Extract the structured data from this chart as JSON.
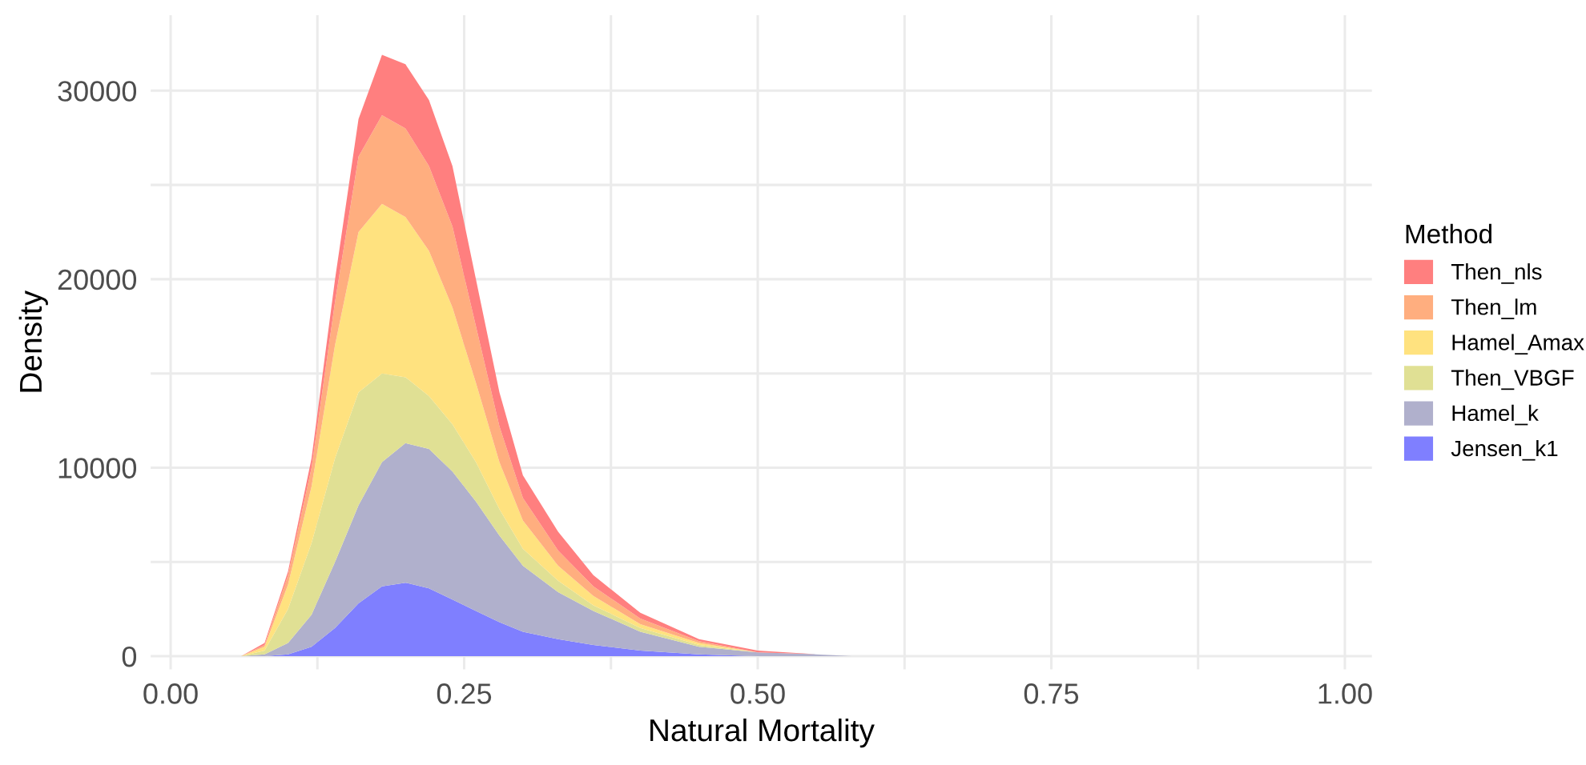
{
  "chart_data": {
    "type": "area",
    "stacked": true,
    "xlabel": "Natural Mortality",
    "ylabel": "Density",
    "legend_title": "Method",
    "legend": "right",
    "grid": true,
    "x": [
      0.06,
      0.08,
      0.1,
      0.12,
      0.14,
      0.16,
      0.18,
      0.2,
      0.22,
      0.24,
      0.26,
      0.28,
      0.3,
      0.33,
      0.36,
      0.4,
      0.45,
      0.5,
      0.55,
      0.58
    ],
    "xlim": [
      -0.017,
      1.023
    ],
    "ylim": [
      -700,
      34000
    ],
    "xticks": [
      {
        "value": 0,
        "label": "0.00"
      },
      {
        "value": 0.125,
        "label": null
      },
      {
        "value": 0.25,
        "label": "0.25"
      },
      {
        "value": 0.375,
        "label": null
      },
      {
        "value": 0.5,
        "label": "0.50"
      },
      {
        "value": 0.625,
        "label": null
      },
      {
        "value": 0.75,
        "label": "0.75"
      },
      {
        "value": 0.875,
        "label": null
      },
      {
        "value": 1,
        "label": "1.00"
      }
    ],
    "yticks": [
      0,
      {
        "value": 5000,
        "label": null
      },
      10000,
      {
        "value": 15000,
        "label": null
      },
      20000,
      {
        "value": 25000,
        "label": null
      },
      30000
    ],
    "series": [
      {
        "name": "Jensen_k1",
        "color": "#7f7fff",
        "values": [
          0,
          0,
          100,
          500,
          1500,
          2800,
          3700,
          3900,
          3600,
          3000,
          2400,
          1800,
          1300,
          900,
          600,
          300,
          100,
          0,
          0,
          0
        ]
      },
      {
        "name": "Hamel_k",
        "color": "#b0b0cc",
        "values": [
          0,
          100,
          600,
          1700,
          3500,
          5200,
          6600,
          7400,
          7400,
          6800,
          5800,
          4600,
          3500,
          2500,
          1800,
          1000,
          400,
          200,
          100,
          0
        ]
      },
      {
        "name": "Then_VBGF",
        "color": "#e0e094",
        "values": [
          0,
          200,
          1800,
          3800,
          5500,
          6000,
          4700,
          3500,
          2800,
          2500,
          2100,
          1400,
          900,
          600,
          300,
          200,
          100,
          0,
          0,
          0
        ]
      },
      {
        "name": "Hamel_Amax",
        "color": "#ffe27f",
        "values": [
          0,
          200,
          1300,
          3000,
          6000,
          8500,
          9000,
          8500,
          7700,
          6200,
          4200,
          2500,
          1500,
          800,
          500,
          200,
          100,
          0,
          0,
          0
        ]
      },
      {
        "name": "Then_lm",
        "color": "#ffae7f",
        "values": [
          0,
          100,
          500,
          1000,
          2300,
          4000,
          4700,
          4700,
          4500,
          4300,
          3000,
          1900,
          1200,
          800,
          500,
          300,
          100,
          0,
          0,
          0
        ]
      },
      {
        "name": "Then_nls",
        "color": "#ff7f7f",
        "values": [
          0,
          100,
          200,
          500,
          1200,
          2000,
          3200,
          3400,
          3500,
          3200,
          2500,
          1800,
          1200,
          1000,
          600,
          300,
          100,
          100,
          0,
          0
        ]
      }
    ]
  }
}
